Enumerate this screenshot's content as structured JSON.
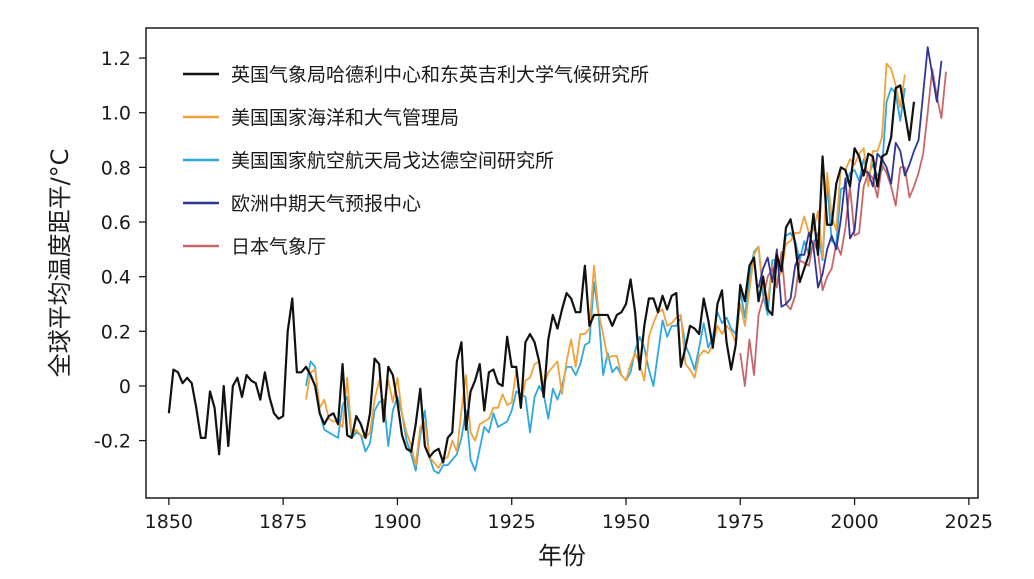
{
  "chart_data": {
    "type": "line",
    "title": "",
    "xlabel": "年份",
    "ylabel": "全球平均温度距平/°C",
    "xlim": [
      1845,
      2027
    ],
    "ylim": [
      -0.41,
      1.31
    ],
    "xticks": [
      1850,
      1875,
      1900,
      1925,
      1950,
      1975,
      2000,
      2025
    ],
    "xtick_labels": [
      "1850",
      "1875",
      "1900",
      "1925",
      "1950",
      "1975",
      "2000",
      "2025"
    ],
    "yticks": [
      -0.2,
      0,
      0.2,
      0.4,
      0.6,
      0.8,
      1.0,
      1.2
    ],
    "ytick_labels": [
      "-0.2",
      "0",
      "0.2",
      "0.4",
      "0.6",
      "0.8",
      "1.0",
      "1.2"
    ],
    "legend_position": "top-left",
    "series": [
      {
        "name": "英国气象局哈德利中心和东英吉利大学气候研究所",
        "color": "#111111",
        "x_start": 1850,
        "values": [
          -0.1,
          0.06,
          0.05,
          0.01,
          0.03,
          0.01,
          -0.08,
          -0.19,
          -0.19,
          -0.02,
          -0.08,
          -0.25,
          0.0,
          -0.22,
          0.0,
          0.03,
          -0.04,
          0.04,
          0.02,
          0.01,
          -0.05,
          0.05,
          -0.04,
          -0.1,
          -0.12,
          -0.11,
          0.2,
          0.32,
          0.05,
          0.05,
          0.07,
          0.04,
          0.0,
          -0.1,
          -0.14,
          -0.11,
          -0.1,
          -0.14,
          0.08,
          -0.18,
          -0.19,
          -0.11,
          -0.14,
          -0.19,
          -0.1,
          0.1,
          0.08,
          -0.13,
          0.07,
          0.04,
          -0.06,
          -0.18,
          -0.23,
          -0.24,
          -0.14,
          -0.01,
          -0.22,
          -0.26,
          -0.24,
          -0.23,
          -0.28,
          -0.19,
          -0.17,
          0.09,
          0.16,
          -0.16,
          -0.02,
          0.02,
          0.08,
          -0.09,
          0.05,
          0.06,
          0.01,
          0.0,
          0.18,
          0.07,
          0.07,
          -0.08,
          0.16,
          0.19,
          0.16,
          0.09,
          -0.04,
          0.17,
          0.26,
          0.21,
          0.28,
          0.34,
          0.32,
          0.27,
          0.27,
          0.44,
          0.22,
          0.26,
          0.26,
          0.26,
          0.26,
          0.22,
          0.26,
          0.27,
          0.3,
          0.39,
          0.27,
          0.06,
          0.22,
          0.32,
          0.32,
          0.27,
          0.33,
          0.28,
          0.33,
          0.34,
          0.07,
          0.14,
          0.22,
          0.21,
          0.19,
          0.32,
          0.24,
          0.14,
          0.3,
          0.35,
          0.16,
          0.06,
          0.15,
          0.37,
          0.31,
          0.44,
          0.47,
          0.31,
          0.4,
          0.28,
          0.26,
          0.48,
          0.42,
          0.58,
          0.61,
          0.52,
          0.38,
          0.43,
          0.48,
          0.63,
          0.48,
          0.84,
          0.59,
          0.59,
          0.74,
          0.8,
          0.79,
          0.73,
          0.87,
          0.84,
          0.77,
          0.85,
          0.84,
          0.73,
          0.84,
          0.85,
          0.91,
          1.09,
          1.1,
          1.0,
          0.9,
          1.04
        ]
      },
      {
        "name": "美国国家海洋和大气管理局",
        "color": "#f2a13c",
        "x_start": 1880,
        "values": [
          -0.05,
          0.05,
          0.06,
          -0.08,
          -0.05,
          -0.12,
          -0.13,
          -0.13,
          -0.15,
          0.03,
          -0.18,
          -0.16,
          -0.18,
          -0.19,
          -0.17,
          -0.05,
          0.02,
          -0.08,
          0.02,
          -0.06,
          0.03,
          -0.1,
          -0.17,
          -0.22,
          -0.29,
          -0.15,
          -0.13,
          -0.26,
          -0.28,
          -0.3,
          -0.27,
          -0.26,
          -0.2,
          -0.24,
          -0.09,
          0.04,
          -0.17,
          -0.2,
          -0.14,
          -0.13,
          -0.12,
          -0.08,
          -0.08,
          -0.03,
          -0.07,
          -0.06,
          0.06,
          -0.07,
          0.02,
          0.03,
          0.08,
          0.09,
          0.0,
          0.05,
          0.07,
          0.09,
          -0.03,
          0.09,
          0.17,
          0.07,
          0.19,
          0.19,
          0.21,
          0.44,
          0.27,
          0.19,
          0.1,
          0.11,
          0.11,
          0.04,
          0.02,
          0.08,
          0.12,
          0.08,
          0.02,
          0.18,
          0.23,
          0.27,
          0.28,
          0.22,
          0.23,
          0.25,
          0.26,
          0.08,
          0.06,
          0.03,
          0.11,
          0.13,
          0.12,
          0.15,
          0.22,
          0.19,
          0.22,
          0.2,
          0.16,
          0.3,
          0.22,
          0.35,
          0.48,
          0.51,
          0.36,
          0.31,
          0.44,
          0.38,
          0.42,
          0.52,
          0.53,
          0.56,
          0.56,
          0.62,
          0.56,
          0.57,
          0.64,
          0.47,
          0.78,
          0.62,
          0.57,
          0.8,
          0.79,
          0.83,
          0.81,
          0.85,
          0.87,
          0.73,
          0.86,
          0.86,
          0.91,
          1.18,
          1.16,
          1.1,
          1.02,
          1.14
        ]
      },
      {
        "name": "美国国家航空航天局戈达德空间研究所",
        "color": "#2ea8de",
        "x_start": 1880,
        "values": [
          0.0,
          0.09,
          0.07,
          -0.1,
          -0.16,
          -0.17,
          -0.18,
          -0.19,
          -0.07,
          -0.04,
          -0.19,
          -0.17,
          -0.18,
          -0.24,
          -0.21,
          -0.09,
          -0.06,
          -0.05,
          -0.22,
          -0.09,
          -0.04,
          -0.1,
          -0.2,
          -0.25,
          -0.31,
          -0.18,
          -0.09,
          -0.26,
          -0.31,
          -0.32,
          -0.29,
          -0.29,
          -0.27,
          -0.25,
          -0.19,
          -0.09,
          -0.27,
          -0.31,
          -0.23,
          -0.15,
          -0.17,
          -0.1,
          -0.15,
          -0.14,
          -0.13,
          -0.09,
          -0.02,
          -0.03,
          -0.04,
          -0.17,
          -0.04,
          0.0,
          -0.03,
          -0.12,
          -0.01,
          -0.05,
          0.0,
          0.07,
          0.07,
          0.04,
          0.08,
          0.15,
          0.16,
          0.38,
          0.26,
          0.04,
          0.12,
          0.05,
          0.07,
          0.04,
          0.02,
          0.05,
          0.13,
          0.18,
          0.14,
          0.06,
          0.0,
          0.12,
          0.24,
          0.18,
          0.22,
          0.22,
          0.25,
          0.15,
          0.11,
          0.06,
          0.14,
          0.23,
          0.14,
          0.18,
          0.27,
          0.23,
          0.25,
          0.21,
          0.19,
          0.35,
          0.25,
          0.4,
          0.49,
          0.51,
          0.33,
          0.26,
          0.46,
          0.46,
          0.45,
          0.55,
          0.56,
          0.53,
          0.46,
          0.53,
          0.48,
          0.52,
          0.56,
          0.46,
          0.74,
          0.53,
          0.52,
          0.72,
          0.73,
          0.78,
          0.79,
          0.75,
          0.83,
          0.77,
          0.81,
          0.77,
          0.79,
          1.04,
          1.09,
          1.07,
          0.97,
          1.09
        ]
      },
      {
        "name": "欧洲中期天气预报中心",
        "color": "#2f3595",
        "x_start": 1979,
        "values": [
          0.36,
          0.43,
          0.47,
          0.38,
          0.5,
          0.29,
          0.3,
          0.32,
          0.44,
          0.48,
          0.48,
          0.56,
          0.51,
          0.36,
          0.41,
          0.5,
          0.55,
          0.5,
          0.61,
          0.76,
          0.54,
          0.57,
          0.74,
          0.79,
          0.78,
          0.73,
          0.85,
          0.83,
          0.8,
          0.74,
          0.89,
          0.86,
          0.77,
          0.81,
          0.86,
          0.9,
          1.07,
          1.24,
          1.14,
          1.04,
          1.19
        ]
      },
      {
        "name": "日本气象厅",
        "color": "#c8676b",
        "x_start": 1975,
        "values": [
          0.12,
          0.0,
          0.17,
          0.04,
          0.26,
          0.32,
          0.4,
          0.43,
          0.36,
          0.49,
          0.3,
          0.28,
          0.33,
          0.46,
          0.45,
          0.44,
          0.53,
          0.49,
          0.35,
          0.4,
          0.43,
          0.52,
          0.48,
          0.58,
          0.73,
          0.55,
          0.56,
          0.73,
          0.78,
          0.76,
          0.69,
          0.81,
          0.78,
          0.73,
          0.66,
          0.8,
          0.8,
          0.69,
          0.73,
          0.78,
          0.85,
          1.0,
          1.16,
          1.06,
          0.98,
          1.15
        ]
      }
    ]
  }
}
